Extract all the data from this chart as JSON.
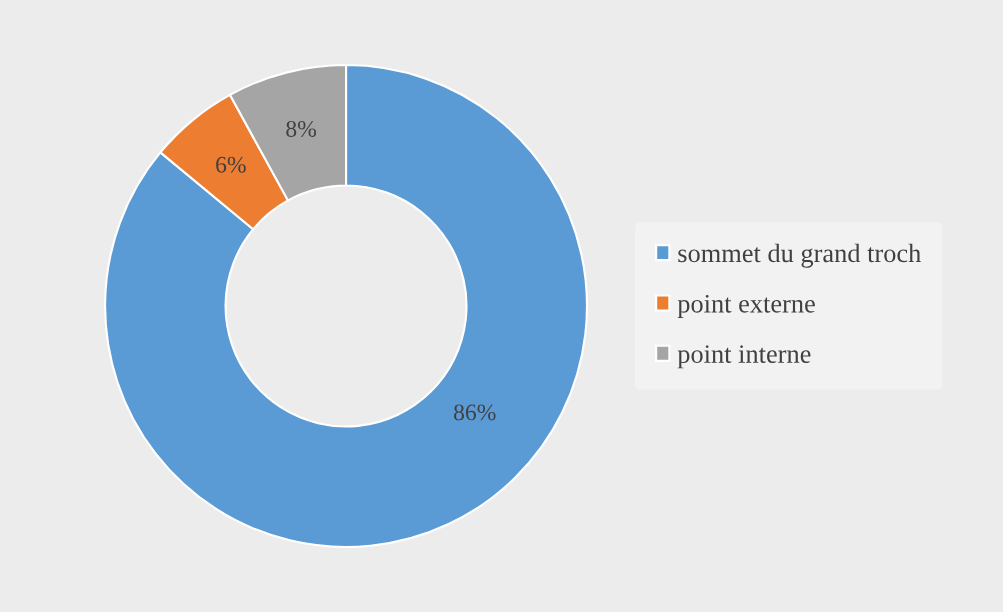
{
  "chart_data": {
    "type": "donut",
    "categories": [
      "sommet du grand troch",
      "point externe",
      "point interne"
    ],
    "values": [
      86,
      6,
      8
    ],
    "colors": [
      "#5b9bd5",
      "#ed7d31",
      "#a5a5a5"
    ],
    "value_labels": [
      "86%",
      "6%",
      "8%"
    ],
    "legend": "right"
  }
}
